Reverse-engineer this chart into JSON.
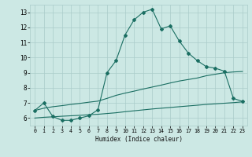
{
  "bg_color": "#cce8e4",
  "grid_color": "#aaccca",
  "line_color": "#1a6e62",
  "marker_color": "#1a6e62",
  "xlabel": "Humidex (Indice chaleur)",
  "xlim": [
    -0.5,
    23.5
  ],
  "ylim": [
    5.5,
    13.5
  ],
  "yticks": [
    6,
    7,
    8,
    9,
    10,
    11,
    12,
    13
  ],
  "xticks": [
    0,
    1,
    2,
    3,
    4,
    5,
    6,
    7,
    8,
    9,
    10,
    11,
    12,
    13,
    14,
    15,
    16,
    17,
    18,
    19,
    20,
    21,
    22,
    23
  ],
  "curve1_x": [
    0,
    1,
    2,
    3,
    4,
    5,
    6,
    7,
    8,
    9,
    10,
    11,
    12,
    13,
    14,
    15,
    16,
    17,
    18,
    19,
    20,
    21,
    22,
    23
  ],
  "curve1_y": [
    6.5,
    7.0,
    6.1,
    5.85,
    5.85,
    6.0,
    6.15,
    6.55,
    9.0,
    9.8,
    11.5,
    12.5,
    13.0,
    13.2,
    11.9,
    12.1,
    11.1,
    10.3,
    9.8,
    9.4,
    9.3,
    9.1,
    7.3,
    7.1
  ],
  "curve2_x": [
    0,
    1,
    2,
    3,
    4,
    5,
    6,
    7,
    8,
    9,
    10,
    11,
    12,
    13,
    14,
    15,
    16,
    17,
    18,
    19,
    20,
    21,
    22,
    23
  ],
  "curve2_y": [
    6.5,
    6.65,
    6.75,
    6.82,
    6.9,
    6.97,
    7.05,
    7.12,
    7.3,
    7.5,
    7.65,
    7.78,
    7.92,
    8.05,
    8.18,
    8.32,
    8.45,
    8.55,
    8.65,
    8.8,
    8.9,
    9.0,
    9.05,
    9.08
  ],
  "curve3_x": [
    0,
    1,
    2,
    3,
    4,
    5,
    6,
    7,
    8,
    9,
    10,
    11,
    12,
    13,
    14,
    15,
    16,
    17,
    18,
    19,
    20,
    21,
    22,
    23
  ],
  "curve3_y": [
    6.0,
    6.05,
    6.08,
    6.12,
    6.15,
    6.18,
    6.22,
    6.25,
    6.3,
    6.35,
    6.42,
    6.48,
    6.54,
    6.6,
    6.65,
    6.7,
    6.75,
    6.8,
    6.85,
    6.9,
    6.94,
    6.98,
    7.02,
    7.07
  ]
}
